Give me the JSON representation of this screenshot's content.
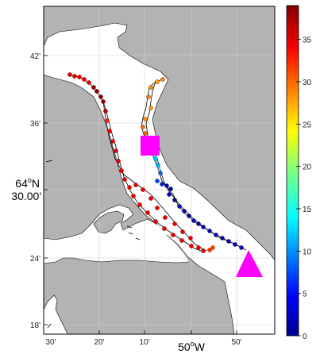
{
  "map": {
    "lat_labels": [
      "42'",
      "36'",
      "30.00'",
      "24'",
      "18'"
    ],
    "lat_degree_label": "64°N",
    "lat_degree_parts": {
      "deg": "64",
      "sup": "o",
      "hem": "N"
    },
    "lon_labels": [
      "30'",
      "20'",
      "10'",
      "50'"
    ],
    "lon_degree_label": "50°W",
    "lon_degree_parts": {
      "deg": "50",
      "sup": "o",
      "hem": "W"
    },
    "lon_label_positions": [
      30,
      20,
      10,
      50
    ],
    "colors": {
      "land": "#b3b3b3",
      "water": "#ffffff",
      "track_line": "#000000",
      "marker_rect": "#ff00ff",
      "marker_triangle": "#ff00ff"
    }
  },
  "colorbar": {
    "ticks": [
      "35",
      "30",
      "25",
      "20",
      "15",
      "10",
      "5",
      "0"
    ],
    "tick_values": [
      35,
      30,
      25,
      20,
      15,
      10,
      5,
      0
    ],
    "min": 0,
    "max": 39,
    "colormap": "jet"
  }
}
